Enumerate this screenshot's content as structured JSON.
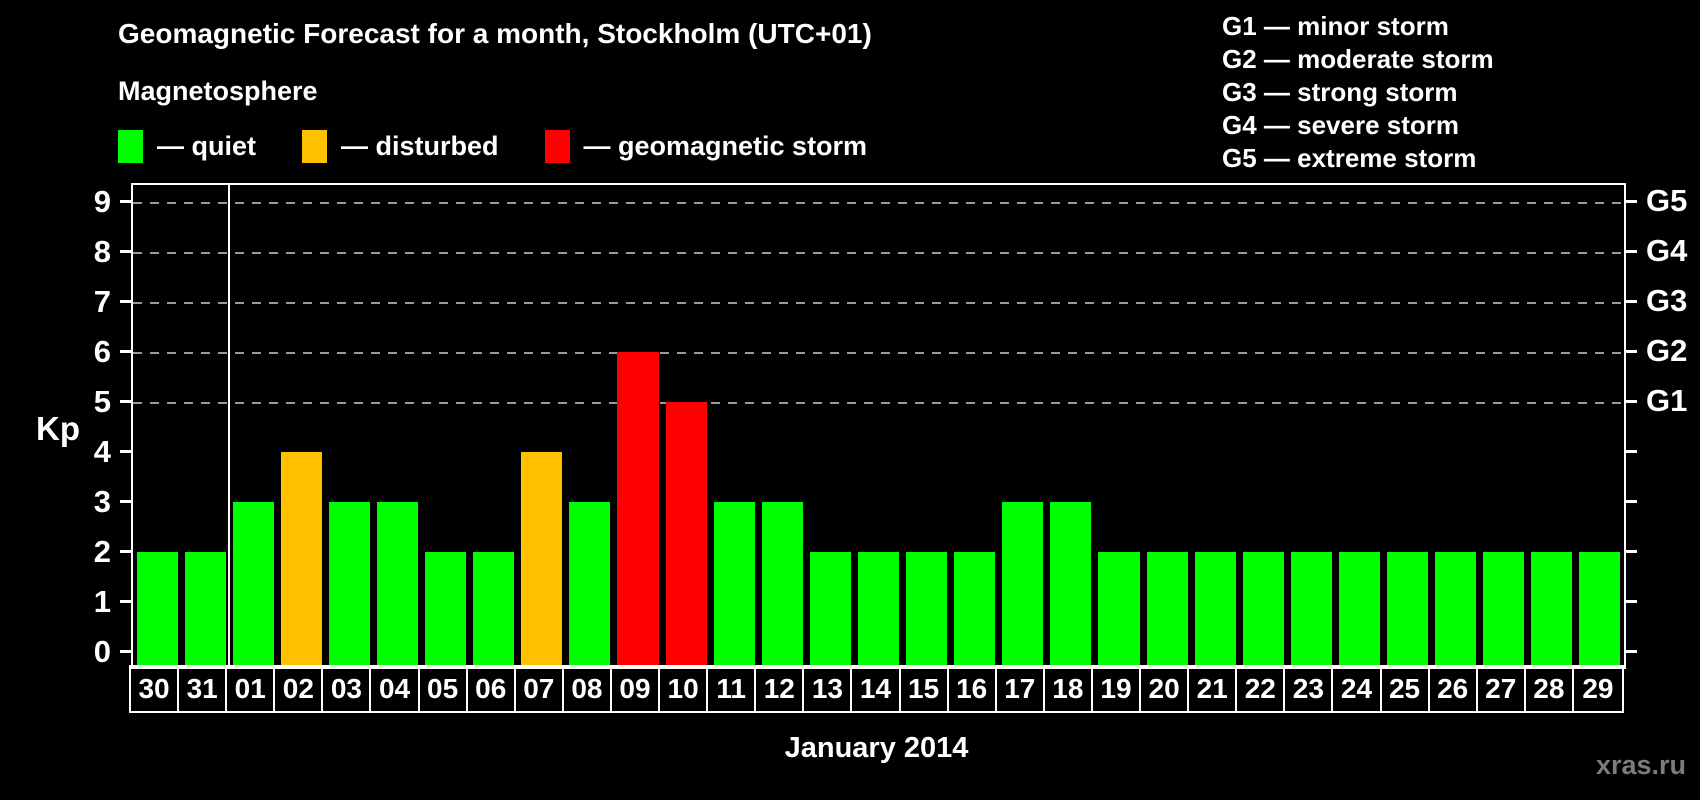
{
  "title": "Geomagnetic Forecast for a month, Stockholm (UTC+01)",
  "subtitle": "Magnetosphere",
  "legend": {
    "items": [
      {
        "key": "quiet",
        "label": "— quiet"
      },
      {
        "key": "disturbed",
        "label": "— disturbed"
      },
      {
        "key": "storm",
        "label": "— geomagnetic storm"
      }
    ]
  },
  "g_legend": [
    "G1 — minor storm",
    "G2 — moderate storm",
    "G3 — strong storm",
    "G4 — severe storm",
    "G5 — extreme storm"
  ],
  "colors": {
    "quiet": "#00ff00",
    "disturbed": "#ffc000",
    "storm": "#ff0000"
  },
  "watermark": "xras.ru",
  "chart_data": {
    "type": "bar",
    "title": "Geomagnetic Forecast for a month, Stockholm (UTC+01)",
    "xlabel": "January 2014",
    "ylabel": "Kp",
    "ylim": [
      0,
      9
    ],
    "grid": "dashed horizontal lines at Kp 5-9 only",
    "grid_levels": [
      5,
      6,
      7,
      8,
      9
    ],
    "left_ticks": [
      "0",
      "1",
      "2",
      "3",
      "4",
      "5",
      "6",
      "7",
      "8",
      "9"
    ],
    "right_axis_labels": [
      {
        "kp": 5,
        "label": "G1"
      },
      {
        "kp": 6,
        "label": "G2"
      },
      {
        "kp": 7,
        "label": "G3"
      },
      {
        "kp": 8,
        "label": "G4"
      },
      {
        "kp": 9,
        "label": "G5"
      }
    ],
    "categories": [
      "30",
      "31",
      "01",
      "02",
      "03",
      "04",
      "05",
      "06",
      "07",
      "08",
      "09",
      "10",
      "11",
      "12",
      "13",
      "14",
      "15",
      "16",
      "17",
      "18",
      "19",
      "20",
      "21",
      "22",
      "23",
      "24",
      "25",
      "26",
      "27",
      "28",
      "29"
    ],
    "values": [
      2,
      2,
      3,
      4,
      3,
      3,
      2,
      2,
      4,
      3,
      6,
      5,
      3,
      3,
      2,
      2,
      2,
      2,
      3,
      3,
      2,
      2,
      2,
      2,
      2,
      2,
      2,
      2,
      2,
      2,
      2
    ],
    "status": [
      "quiet",
      "quiet",
      "quiet",
      "disturbed",
      "quiet",
      "quiet",
      "quiet",
      "quiet",
      "disturbed",
      "quiet",
      "storm",
      "storm",
      "quiet",
      "quiet",
      "quiet",
      "quiet",
      "quiet",
      "quiet",
      "quiet",
      "quiet",
      "quiet",
      "quiet",
      "quiet",
      "quiet",
      "quiet",
      "quiet",
      "quiet",
      "quiet",
      "quiet",
      "quiet",
      "quiet"
    ],
    "month_separator_after_index": 1,
    "legend_position": "top-left and top-right"
  }
}
